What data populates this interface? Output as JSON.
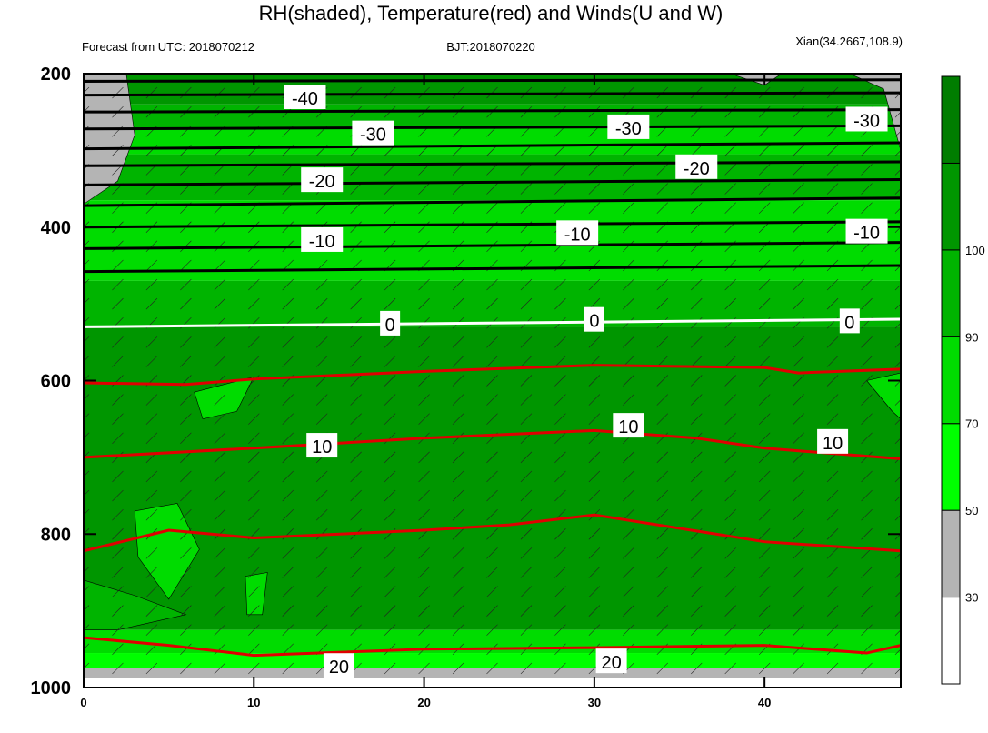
{
  "chart_data": {
    "type": "heatmap",
    "title": "RH(shaded), Temperature(red) and Winds(U and W)",
    "subtitle_left": "Forecast from UTC: 2018070212",
    "subtitle_center": "BJT:2018070220",
    "subtitle_right": "Xian(34.2667,108.9)",
    "x": {
      "range": [
        0,
        48
      ],
      "ticks": [
        0,
        10,
        20,
        30,
        40
      ],
      "tick_labels": [
        "0",
        "10",
        "20",
        "30",
        "40"
      ]
    },
    "y": {
      "range": [
        200,
        1000
      ],
      "reversed": true,
      "ticks": [
        200,
        400,
        600,
        800,
        1000
      ],
      "tick_labels": [
        "200",
        "400",
        "600",
        "800",
        "1000"
      ]
    },
    "colorbar": {
      "levels": [
        30,
        50,
        70,
        90,
        100
      ],
      "labels": [
        "30",
        "50",
        "70",
        "90",
        "100"
      ],
      "colors": [
        "#ffffff",
        "#b4b4b4",
        "#00ff00",
        "#00dc00",
        "#00b400",
        "#009600",
        "#007d00"
      ]
    },
    "rh_bands": [
      {
        "from": 200,
        "to": 240,
        "level": 5
      },
      {
        "from": 240,
        "to": 270,
        "level": 4
      },
      {
        "from": 270,
        "to": 305,
        "level": 3
      },
      {
        "from": 305,
        "to": 365,
        "level": 4
      },
      {
        "from": 365,
        "to": 470,
        "level": 3
      },
      {
        "from": 470,
        "to": 530,
        "level": 4
      },
      {
        "from": 530,
        "to": 925,
        "level": 5
      },
      {
        "from": 925,
        "to": 955,
        "level": 3
      },
      {
        "from": 955,
        "to": 975,
        "level": 2
      },
      {
        "from": 975,
        "to": 987,
        "level": 1
      },
      {
        "from": 987,
        "to": 1000,
        "level": 0
      }
    ],
    "rh_blobs": [
      {
        "x": [
          0,
          0,
          2,
          3,
          2.5
        ],
        "y": [
          200,
          370,
          340,
          280,
          200
        ],
        "level": 1
      },
      {
        "x": [
          45,
          47,
          48,
          48,
          46
        ],
        "y": [
          200,
          220,
          300,
          200,
          200
        ],
        "level": 1
      },
      {
        "x": [
          38,
          40,
          41,
          39
        ],
        "y": [
          200,
          215,
          200,
          200
        ],
        "level": 1
      },
      {
        "x": [
          3,
          5.5,
          6.8,
          5,
          3.2
        ],
        "y": [
          770,
          760,
          820,
          885,
          830
        ],
        "level": 3
      },
      {
        "x": [
          6.5,
          10,
          9,
          7
        ],
        "y": [
          615,
          595,
          640,
          650
        ],
        "level": 3
      },
      {
        "x": [
          9.5,
          10.8,
          10.5,
          9.6
        ],
        "y": [
          855,
          850,
          905,
          905
        ],
        "level": 3
      },
      {
        "x": [
          0,
          3,
          6,
          2,
          0
        ],
        "y": [
          860,
          880,
          905,
          925,
          925
        ],
        "level": 4
      },
      {
        "x": [
          46,
          48,
          48,
          47.5
        ],
        "y": [
          600,
          590,
          650,
          640
        ],
        "level": 3
      }
    ],
    "temperature_contours": [
      {
        "value": -40,
        "x": [
          0,
          48
        ],
        "y": [
          210,
          208
        ]
      },
      {
        "value": -40,
        "x": [
          0,
          48
        ],
        "y": [
          228,
          225
        ]
      },
      {
        "value": -40,
        "x": [
          0,
          48
        ],
        "y": [
          250,
          247
        ]
      },
      {
        "value": -30,
        "x": [
          0,
          48
        ],
        "y": [
          272,
          268
        ]
      },
      {
        "value": -30,
        "x": [
          0,
          48
        ],
        "y": [
          298,
          290
        ]
      },
      {
        "value": -20,
        "x": [
          0,
          48
        ],
        "y": [
          320,
          315
        ]
      },
      {
        "value": -20,
        "x": [
          0,
          48
        ],
        "y": [
          345,
          338
        ]
      },
      {
        "value": -20,
        "x": [
          0,
          48
        ],
        "y": [
          372,
          362
        ]
      },
      {
        "value": -10,
        "x": [
          0,
          48
        ],
        "y": [
          400,
          393
        ]
      },
      {
        "value": -10,
        "x": [
          0,
          48
        ],
        "y": [
          428,
          420
        ]
      },
      {
        "value": -10,
        "x": [
          0,
          48
        ],
        "y": [
          458,
          450
        ]
      },
      {
        "value": 0,
        "x": [
          0,
          48
        ],
        "y": [
          530,
          520
        ]
      },
      {
        "value": 10,
        "x": [
          0,
          6,
          10,
          20,
          30,
          40,
          42,
          48
        ],
        "y": [
          603,
          605,
          598,
          588,
          580,
          583,
          590,
          585
        ]
      },
      {
        "value": 10,
        "x": [
          0,
          10,
          20,
          30,
          36,
          40,
          48
        ],
        "y": [
          700,
          688,
          675,
          665,
          675,
          688,
          702
        ]
      },
      {
        "value": 20,
        "x": [
          0,
          5,
          10,
          20,
          25,
          30,
          40,
          48
        ],
        "y": [
          822,
          795,
          805,
          795,
          788,
          775,
          810,
          822
        ]
      },
      {
        "value": 20,
        "x": [
          0,
          5,
          10,
          20,
          30,
          40,
          46,
          48
        ],
        "y": [
          935,
          945,
          958,
          950,
          948,
          945,
          955,
          945
        ]
      }
    ],
    "contour_labels": [
      {
        "text": "-40",
        "x": 13,
        "y": 232
      },
      {
        "text": "-30",
        "x": 17,
        "y": 279
      },
      {
        "text": "-30",
        "x": 32,
        "y": 271
      },
      {
        "text": "-30",
        "x": 46,
        "y": 261
      },
      {
        "text": "-20",
        "x": 14,
        "y": 340
      },
      {
        "text": "-20",
        "x": 36,
        "y": 323
      },
      {
        "text": "-10",
        "x": 14,
        "y": 418
      },
      {
        "text": "-10",
        "x": 29,
        "y": 409
      },
      {
        "text": "-10",
        "x": 46,
        "y": 407
      },
      {
        "text": "0",
        "x": 18,
        "y": 527
      },
      {
        "text": "0",
        "x": 30,
        "y": 522
      },
      {
        "text": "0",
        "x": 45,
        "y": 524
      },
      {
        "text": "10",
        "x": 14,
        "y": 686
      },
      {
        "text": "10",
        "x": 32,
        "y": 660
      },
      {
        "text": "10",
        "x": 44,
        "y": 681
      },
      {
        "text": "20",
        "x": 15,
        "y": 973
      },
      {
        "text": "20",
        "x": 31,
        "y": 967
      }
    ],
    "grid": false,
    "colors": {
      "temperature": "#e00000",
      "zero": "#ffffff",
      "cold": "#000000"
    }
  }
}
